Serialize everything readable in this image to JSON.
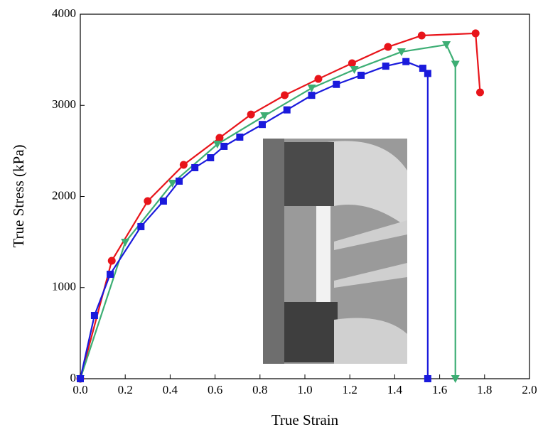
{
  "chart_data": {
    "type": "line",
    "x_label": "True Strain",
    "y_label": "True Stress (kPa)",
    "xlim": [
      0,
      2
    ],
    "ylim": [
      0,
      4000
    ],
    "xticks": [
      {
        "value": 0,
        "label": "0.0"
      },
      0.2,
      0.4,
      0.6,
      0.8,
      {
        "value": 1,
        "label": "1.0"
      },
      1.2,
      1.4,
      1.6,
      1.8,
      {
        "value": 2,
        "label": "2.0"
      }
    ],
    "yticks": [
      0,
      1000,
      2000,
      3000,
      4000
    ],
    "series": [
      {
        "color": "#e8141a",
        "marker": "circle",
        "x": [
          0,
          0.14,
          0.3,
          0.46,
          0.62,
          0.76,
          0.91,
          1.06,
          1.21,
          1.37,
          1.52,
          1.76,
          1.78
        ],
        "values": [
          0,
          1294,
          1949,
          2347,
          2643,
          2900,
          3111,
          3290,
          3462,
          3641,
          3766,
          3790,
          3142
        ]
      },
      {
        "color": "#3dae74",
        "marker": "triangle",
        "x": [
          0,
          0.2,
          0.41,
          0.61,
          0.82,
          1.03,
          1.22,
          1.43,
          1.63,
          1.67,
          1.67
        ],
        "values": [
          0,
          1497,
          2144,
          2573,
          2885,
          3189,
          3392,
          3587,
          3665,
          3450,
          0
        ]
      },
      {
        "color": "#1a1adc",
        "marker": "square",
        "x": [
          0,
          0.063,
          0.133,
          0.27,
          0.37,
          0.44,
          0.51,
          0.58,
          0.64,
          0.71,
          0.81,
          0.92,
          1.03,
          1.14,
          1.25,
          1.36,
          1.45,
          1.525,
          1.547,
          1.547
        ],
        "values": [
          0,
          694,
          1146,
          1669,
          1949,
          2168,
          2316,
          2425,
          2550,
          2651,
          2790,
          2950,
          3110,
          3230,
          3330,
          3430,
          3480,
          3407,
          3350,
          0
        ]
      }
    ]
  }
}
